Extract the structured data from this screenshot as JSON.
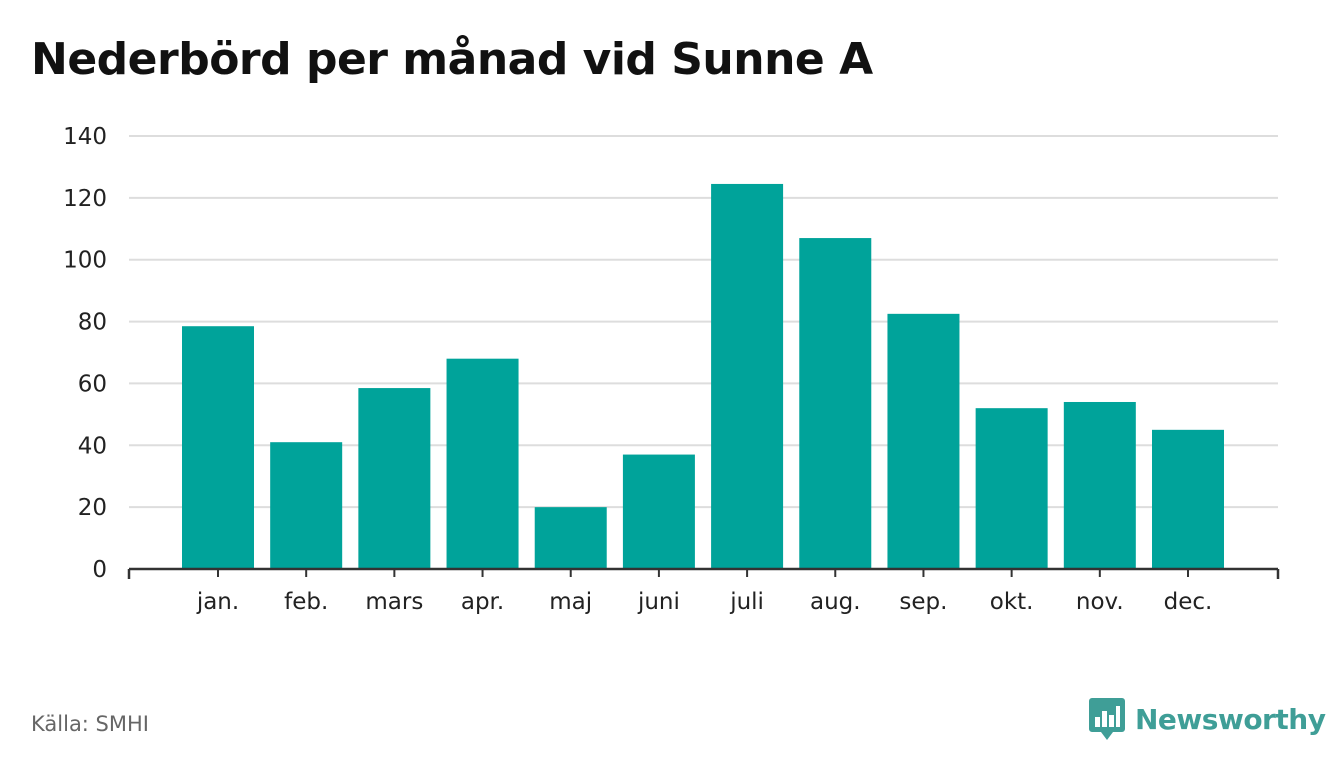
{
  "title": "Nederbörd per månad vid Sunne A",
  "source": "Källa: SMHI",
  "brand": {
    "name": "Newsworthy",
    "icon": "bar-chart-speech-bubble-icon",
    "color": "#3f9e97"
  },
  "chart_data": {
    "type": "bar",
    "title": "Nederbörd per månad vid Sunne A",
    "xlabel": "",
    "ylabel": "",
    "categories": [
      "jan.",
      "feb.",
      "mars",
      "apr.",
      "maj",
      "juni",
      "juli",
      "aug.",
      "sep.",
      "okt.",
      "nov.",
      "dec."
    ],
    "values": [
      78.5,
      41,
      58.5,
      68,
      20,
      37,
      124.5,
      107,
      82.5,
      52,
      54,
      45
    ],
    "ylim": [
      0,
      140
    ],
    "yticks": [
      "0",
      "20",
      "40",
      "60",
      "80",
      "100",
      "120",
      "140"
    ],
    "grid": true,
    "bar_color": "#00a39a",
    "grid_color": "#dddddd",
    "axis_color": "#333333"
  }
}
